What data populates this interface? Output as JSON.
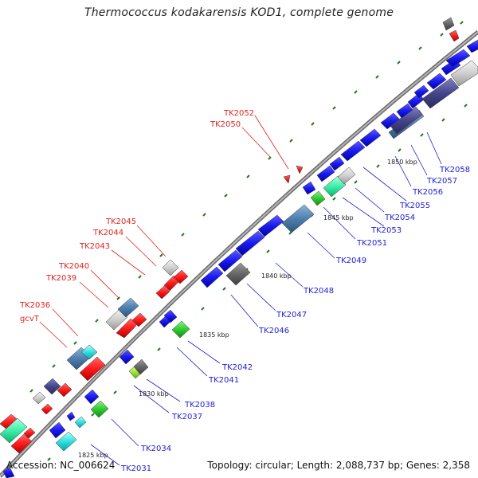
{
  "title": "Thermococcus kodakarensis KOD1, complete genome",
  "footer": {
    "accession": "Accession: NC_006624",
    "summary": "Topology: circular; Length: 2,088,737 bp; Genes: 2,358"
  },
  "colors": {
    "backbone": "#8a8a8a",
    "red": "#ff1a1a",
    "blue": "#1a1af0",
    "steel": "#4f7fb0",
    "green_line": "#1e7a1e",
    "label_red": "#e0231f",
    "label_blue": "#1d1dd6"
  },
  "scale_labels": [
    "1825 kbp",
    "1830 kbp",
    "1835 kbp",
    "1840 kbp",
    "1845 kbp",
    "1850 kbp"
  ],
  "gene_labels_left": [
    "TK2052",
    "TK2050",
    "TK2045",
    "TK2044",
    "TK2043",
    "TK2040",
    "TK2039",
    "TK2036",
    "gcvT"
  ],
  "gene_labels_right": [
    "TK2058",
    "TK2057",
    "TK2056",
    "TK2055",
    "TK2054",
    "TK2053",
    "TK2051",
    "TK2049",
    "TK2048",
    "TK2047",
    "TK2046",
    "TK2042",
    "TK2041",
    "TK2038",
    "TK2037",
    "TK2034",
    "TK2031"
  ]
}
